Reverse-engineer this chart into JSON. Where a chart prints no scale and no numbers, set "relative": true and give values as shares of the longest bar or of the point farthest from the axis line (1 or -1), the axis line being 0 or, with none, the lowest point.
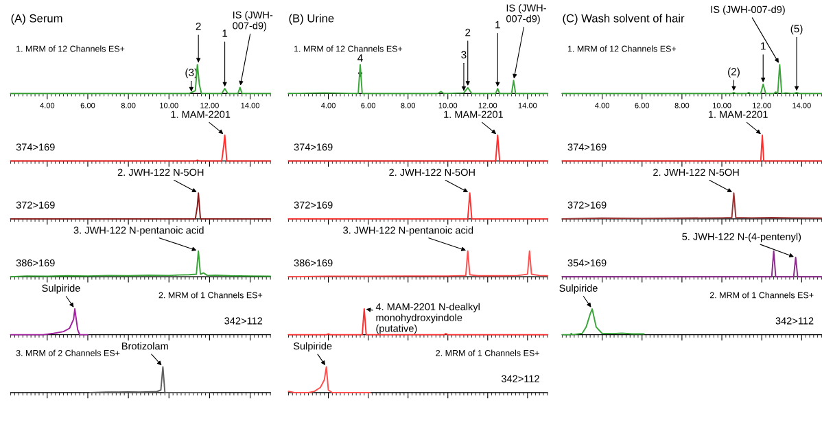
{
  "chart_data": [
    {
      "type": "line",
      "title": "(A) Serum",
      "subtitle": "1. MRM of 12 Channels ES+",
      "relative": true,
      "xlim": [
        2.2,
        15.0
      ],
      "xticks": [
        {
          "value": 4,
          "label": "4.00"
        },
        {
          "value": 6,
          "label": "6.00"
        },
        {
          "value": 8,
          "label": "8.00"
        },
        {
          "value": 10,
          "label": "10.00"
        },
        {
          "value": 12,
          "label": "12.00"
        },
        {
          "value": 14,
          "label": "14.00"
        }
      ],
      "x": [
        2.2,
        11.0,
        11.3,
        11.4,
        11.5,
        11.6,
        12.6,
        12.75,
        12.9,
        13.4,
        13.5,
        13.6,
        15.0
      ],
      "series": [
        {
          "color": "#3aa63a",
          "values": [
            0,
            0,
            0.1,
            1,
            0.3,
            0,
            0,
            0.17,
            0,
            0,
            0.21,
            0,
            0
          ]
        }
      ],
      "annotations": [
        {
          "text": "(3)",
          "x": 11.1,
          "y": 0
        },
        {
          "text": "2",
          "x": 11.45,
          "y": 1
        },
        {
          "text": "1",
          "x": 12.75,
          "y": 0.17
        },
        {
          "text": "IS (JWH-\n007-d9)",
          "x": 13.5,
          "y": 0.21
        }
      ]
    },
    {
      "type": "line",
      "ylabel": "374>169",
      "relative": true,
      "xlim": [
        2.2,
        15.0
      ],
      "xticks": [
        4,
        6,
        8,
        10,
        12,
        14
      ],
      "tick_labels": false,
      "x": [
        2.2,
        11.3,
        11.4,
        11.5,
        12.6,
        12.7,
        12.75,
        12.85,
        15.0
      ],
      "series": [
        {
          "color": "#ff3030",
          "values": [
            0,
            0,
            0.03,
            0,
            0,
            0.6,
            1,
            0,
            0
          ]
        }
      ],
      "annotations": [
        {
          "text": "1. MAM-2201",
          "x": 12.75,
          "y": 1
        }
      ]
    },
    {
      "type": "line",
      "ylabel": "372>169",
      "relative": true,
      "xlim": [
        2.2,
        15.0
      ],
      "xticks": [
        4,
        6,
        8,
        10,
        12,
        14
      ],
      "tick_labels": false,
      "x": [
        2.2,
        11.3,
        11.4,
        11.45,
        11.55,
        15.0
      ],
      "series": [
        {
          "color": "#8b1a1a",
          "values": [
            0,
            0,
            0.5,
            1,
            0,
            0
          ]
        }
      ],
      "annotations": [
        {
          "text": "2. JWH-122 N-5OH",
          "x": 11.45,
          "y": 1
        }
      ]
    },
    {
      "type": "line",
      "ylabel": "386>169",
      "relative": true,
      "xlim": [
        2.2,
        15.0
      ],
      "xticks": [
        4,
        6,
        8,
        10,
        12,
        14
      ],
      "tick_labels": false,
      "x": [
        2.2,
        3,
        4,
        5,
        6,
        7,
        8,
        9,
        10,
        10.5,
        11.0,
        11.35,
        11.45,
        11.55,
        11.7,
        11.9,
        12.3,
        13,
        14,
        15
      ],
      "series": [
        {
          "color": "#3aa63a",
          "values": [
            0,
            0.03,
            0.02,
            0.04,
            0.03,
            0.05,
            0.04,
            0.06,
            0.05,
            0.07,
            0.08,
            0.1,
            1,
            0.1,
            0.15,
            0.05,
            0.06,
            0.04,
            0.03,
            0.02
          ]
        }
      ],
      "annotations": [
        {
          "text": "3. JWH-122 N-pentanoic acid",
          "x": 11.45,
          "y": 1
        }
      ]
    },
    {
      "type": "line",
      "subtitle": "2. MRM of 1 Channels ES+",
      "ylabel": "342>112",
      "relative": true,
      "xlim": [
        2.2,
        15.0
      ],
      "xticks": [
        4,
        6,
        8,
        10,
        12,
        14
      ],
      "tick_labels": false,
      "x": [
        2.2,
        3.8,
        4.3,
        4.8,
        5.1,
        5.3,
        5.36,
        5.5,
        5.6,
        6.0
      ],
      "series": [
        {
          "color": "#a020a0",
          "values": [
            0,
            0,
            0.05,
            0.12,
            0.25,
            0.6,
            1,
            0.2,
            0,
            0
          ]
        }
      ],
      "annotations": [
        {
          "text": "Sulpiride",
          "x": 5.36,
          "y": 1
        }
      ]
    },
    {
      "type": "line",
      "subtitle": "3. MRM of 2 Channels ES+",
      "relative": true,
      "xlim": [
        2.2,
        15.0
      ],
      "xticks": [
        4,
        6,
        8,
        10,
        12,
        14
      ],
      "tick_labels": false,
      "x": [
        6.1,
        7.0,
        7.5,
        8.0,
        8.6,
        9.4,
        9.6,
        9.7,
        9.8,
        12.0
      ],
      "series": [
        {
          "color": "#606060",
          "values": [
            0,
            0.02,
            0.02,
            0.03,
            0.02,
            0.04,
            0.1,
            1,
            0,
            0
          ]
        }
      ],
      "annotations": [
        {
          "text": "Brotizolam",
          "x": 9.7,
          "y": 1
        }
      ]
    },
    {
      "type": "line",
      "title": "(B) Urine",
      "subtitle": "1. MRM of 12 Channels ES+",
      "relative": true,
      "xlim": [
        2.0,
        15.0
      ],
      "xticks": [
        {
          "value": 4,
          "label": "4.00"
        },
        {
          "value": 6,
          "label": "6.00"
        },
        {
          "value": 8,
          "label": "8.00"
        },
        {
          "value": 10,
          "label": "10.00"
        },
        {
          "value": 12,
          "label": "12.00"
        },
        {
          "value": 14,
          "label": "14.00"
        }
      ],
      "x": [
        2.0,
        3.8,
        5.5,
        5.6,
        5.7,
        9.5,
        9.65,
        9.8,
        10.8,
        11.0,
        11.2,
        12.4,
        12.5,
        12.6,
        13.2,
        13.3,
        13.4,
        15.0
      ],
      "series": [
        {
          "color": "#3aa63a",
          "values": [
            0,
            0.02,
            0,
            1,
            0,
            0,
            0.07,
            0,
            0.02,
            0.2,
            0,
            0,
            0.17,
            0,
            0,
            0.45,
            0,
            0
          ]
        }
      ],
      "annotations": [
        {
          "text": "4",
          "x": 5.6,
          "y": 0.5
        },
        {
          "text": "3",
          "x": 10.8,
          "y": 0.02
        },
        {
          "text": "2",
          "x": 11.0,
          "y": 0.2
        },
        {
          "text": "1",
          "x": 12.5,
          "y": 0.17
        },
        {
          "text": "IS (JWH-\n007-d9)",
          "x": 13.3,
          "y": 0.45
        }
      ]
    },
    {
      "type": "line",
      "ylabel": "374>169",
      "relative": true,
      "xlim": [
        2.0,
        15.0
      ],
      "xticks": [
        4,
        6,
        8,
        10,
        12,
        14
      ],
      "tick_labels": false,
      "x": [
        2.0,
        12.4,
        12.5,
        12.6,
        15.0
      ],
      "series": [
        {
          "color": "#ff3030",
          "values": [
            0,
            0,
            1,
            0,
            0
          ]
        }
      ],
      "annotations": [
        {
          "text": "1. MAM-2201",
          "x": 12.5,
          "y": 1
        }
      ]
    },
    {
      "type": "line",
      "ylabel": "372>169",
      "relative": true,
      "xlim": [
        2.0,
        15.0
      ],
      "xticks": [
        4,
        6,
        8,
        10,
        12,
        14
      ],
      "tick_labels": false,
      "x": [
        2.0,
        11.0,
        11.1,
        11.2,
        15.0
      ],
      "series": [
        {
          "color": "#ff3030",
          "values": [
            0,
            0,
            1,
            0,
            0
          ]
        }
      ],
      "annotations": [
        {
          "text": "2. JWH-122 N-5OH",
          "x": 11.1,
          "y": 1
        }
      ]
    },
    {
      "type": "line",
      "ylabel": "386>169",
      "relative": true,
      "xlim": [
        2.0,
        15.0
      ],
      "xticks": [
        4,
        6,
        8,
        10,
        12,
        14
      ],
      "tick_labels": false,
      "x": [
        2.0,
        4,
        6,
        8,
        10,
        10.9,
        11.0,
        11.1,
        11.5,
        12.5,
        13.5,
        14.0,
        14.1,
        14.2,
        14.6,
        15.0
      ],
      "series": [
        {
          "color": "#ff5050",
          "values": [
            0,
            0.02,
            0.02,
            0.03,
            0.03,
            0.05,
            1,
            0.08,
            0.04,
            0.04,
            0.05,
            0.1,
            1,
            0.1,
            0.05,
            0.04
          ]
        }
      ],
      "annotations": [
        {
          "text": "3. JWH-122 N-pentanoic acid",
          "x": 11.0,
          "y": 1
        }
      ]
    },
    {
      "type": "line",
      "relative": true,
      "xlim": [
        2.0,
        15.0
      ],
      "xticks": [
        4,
        6,
        8,
        10,
        12,
        14
      ],
      "tick_labels": false,
      "x": [
        2.0,
        3.9,
        4.0,
        4.1,
        5.7,
        5.8,
        5.9,
        9.8,
        9.9,
        10.0,
        15.0
      ],
      "series": [
        {
          "color": "#ff3030",
          "values": [
            0,
            0,
            0.03,
            0,
            0,
            1,
            0,
            0,
            0.04,
            0,
            0
          ]
        }
      ],
      "annotations": [
        {
          "text": "4. MAM-2201 N-dealkyl\nmonohydroxyindole\n(putative)",
          "x": 5.8,
          "y": 1
        }
      ]
    },
    {
      "type": "line",
      "subtitle": "2. MRM of 1 Channels ES+",
      "ylabel": "342>112",
      "relative": true,
      "xlim": [
        2.0,
        15.0
      ],
      "xticks": [
        4,
        6,
        8,
        10,
        12,
        14
      ],
      "tick_labels": false,
      "x": [
        2.0,
        2.3,
        3.0,
        3.3,
        3.6,
        3.8,
        3.9,
        4.0,
        4.2,
        6.1
      ],
      "series": [
        {
          "color": "#ff5050",
          "values": [
            0.05,
            0,
            0,
            0.05,
            0.2,
            0.5,
            1,
            0.1,
            0,
            0
          ]
        }
      ],
      "annotations": [
        {
          "text": "Sulpiride",
          "x": 3.9,
          "y": 1
        }
      ]
    },
    {
      "type": "line",
      "title": "(C) Wash solvent of hair",
      "subtitle": "1. MRM of 12 Channels ES+",
      "relative": true,
      "xlim": [
        2.0,
        15.0
      ],
      "xticks": [
        {
          "value": 4,
          "label": "4.00"
        },
        {
          "value": 6,
          "label": "6.00"
        },
        {
          "value": 8,
          "label": "8.00"
        },
        {
          "value": 10,
          "label": "10.00"
        },
        {
          "value": 12,
          "label": "12.00"
        },
        {
          "value": 14,
          "label": "14.00"
        }
      ],
      "x": [
        2.0,
        10.5,
        10.6,
        10.7,
        11.25,
        11.35,
        11.45,
        11.95,
        12.07,
        12.2,
        12.6,
        12.7,
        12.8,
        12.9,
        13.0,
        13.2,
        13.6,
        13.75,
        13.9,
        15.0
      ],
      "series": [
        {
          "color": "#3aa63a",
          "values": [
            0,
            0,
            0.03,
            0,
            0,
            0.03,
            0,
            0,
            0.32,
            0,
            0,
            0.05,
            0,
            1,
            0,
            0.02,
            0,
            0.03,
            0,
            0
          ]
        }
      ],
      "annotations": [
        {
          "text": "(2)",
          "x": 10.6,
          "y": 0.03
        },
        {
          "text": "1",
          "x": 12.07,
          "y": 0.32
        },
        {
          "text": "IS (JWH-007-d9)",
          "x": 12.9,
          "y": 1
        },
        {
          "text": "(5)",
          "x": 13.75,
          "y": 0.03
        }
      ]
    },
    {
      "type": "line",
      "ylabel": "374>169",
      "relative": true,
      "xlim": [
        2.0,
        15.0
      ],
      "xticks": [
        4,
        6,
        8,
        10,
        12,
        14
      ],
      "tick_labels": false,
      "x": [
        2.0,
        11.95,
        12.03,
        12.1,
        15.0
      ],
      "series": [
        {
          "color": "#ff3030",
          "values": [
            0,
            0,
            1,
            0,
            0
          ]
        }
      ],
      "annotations": [
        {
          "text": "1. MAM-2201",
          "x": 12.03,
          "y": 1
        }
      ]
    },
    {
      "type": "line",
      "ylabel": "372>169",
      "relative": true,
      "xlim": [
        2.0,
        15.0
      ],
      "xticks": [
        4,
        6,
        8,
        10,
        12,
        14
      ],
      "tick_labels": false,
      "x": [
        2.0,
        4,
        6,
        8,
        10,
        10.5,
        10.6,
        10.7,
        11.5,
        12.5,
        13.5,
        15.0
      ],
      "series": [
        {
          "color": "#993333",
          "values": [
            0,
            0.03,
            0.02,
            0.03,
            0.04,
            0.05,
            1,
            0.05,
            0.04,
            0.05,
            0.04,
            0.03
          ]
        }
      ],
      "annotations": [
        {
          "text": "2. JWH-122 N-5OH",
          "x": 10.6,
          "y": 1
        }
      ]
    },
    {
      "type": "line",
      "ylabel": "354>169",
      "relative": true,
      "xlim": [
        2.0,
        15.0
      ],
      "xticks": [
        4,
        6,
        8,
        10,
        12,
        14
      ],
      "tick_labels": false,
      "x": [
        2.0,
        12.5,
        12.6,
        12.7,
        13.6,
        13.7,
        13.8,
        15.0
      ],
      "series": [
        {
          "color": "#8a2a8a",
          "values": [
            0,
            0,
            1,
            0,
            0,
            0.75,
            0,
            0
          ]
        }
      ],
      "annotations": [
        {
          "text": "5. JWH-122 N-(4-pentenyl)",
          "x": 13.7,
          "y": 0.75
        }
      ]
    },
    {
      "type": "line",
      "subtitle": "2. MRM of 1 Channels ES+",
      "ylabel": "342>112",
      "relative": true,
      "xlim": [
        2.0,
        15.0
      ],
      "xticks": [
        4,
        6,
        8,
        10,
        12,
        14
      ],
      "tick_labels": false,
      "x": [
        2.0,
        2.4,
        2.45,
        2.5,
        3.0,
        3.2,
        3.4,
        3.5,
        3.7,
        4.0,
        4.5,
        5.0,
        5.5,
        6.1
      ],
      "series": [
        {
          "color": "#3aa63a",
          "values": [
            0,
            0,
            0.05,
            0,
            0.05,
            0.3,
            0.8,
            1,
            0.3,
            0.05,
            0.04,
            0.06,
            0.03,
            0.03
          ]
        }
      ],
      "annotations": [
        {
          "text": "Sulpiride",
          "x": 3.5,
          "y": 1
        }
      ]
    }
  ]
}
